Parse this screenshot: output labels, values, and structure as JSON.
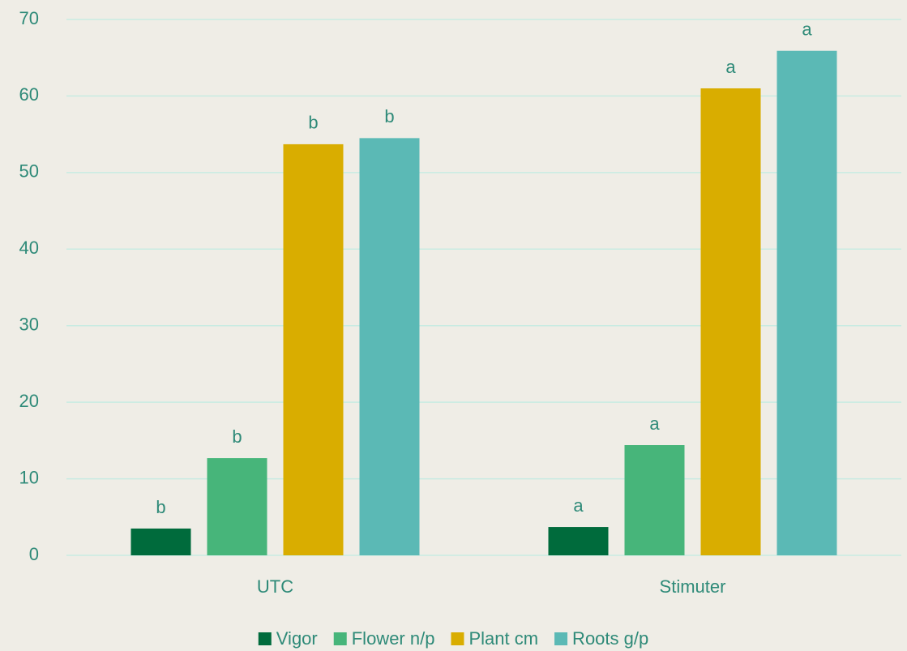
{
  "chart_data": {
    "type": "bar",
    "categories": [
      "UTC",
      "Stimuter"
    ],
    "series": [
      {
        "name": "Vigor",
        "color": "#006b3c",
        "values": [
          3.5,
          3.7
        ],
        "letters": [
          "b",
          "a"
        ]
      },
      {
        "name": "Flower n/p",
        "color": "#47b57a",
        "values": [
          12.7,
          14.4
        ],
        "letters": [
          "b",
          "a"
        ]
      },
      {
        "name": "Plant cm",
        "color": "#d9ad00",
        "values": [
          53.7,
          61
        ],
        "letters": [
          "b",
          "a"
        ]
      },
      {
        "name": "Roots g/p",
        "color": "#5bb9b5",
        "values": [
          54.5,
          65.9
        ],
        "letters": [
          "b",
          "a"
        ]
      }
    ],
    "ylim": [
      0,
      70
    ],
    "yticks": [
      0,
      10,
      20,
      30,
      40,
      50,
      60,
      70
    ],
    "grid": true,
    "legend": "bottom"
  }
}
